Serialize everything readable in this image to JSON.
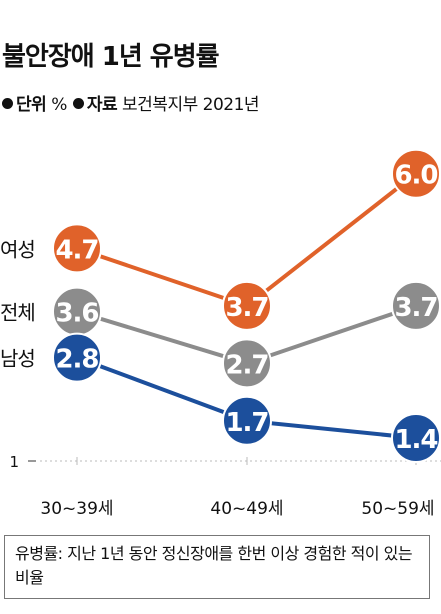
{
  "title": "불안장애 1년 유병률",
  "unit_label": "단위",
  "unit_value": "%",
  "source_label": "자료",
  "source_value": "보건복지부 2021년",
  "note": "유병률: 지난 1년 동안 정신장애를 한번 이상 경험한 적이 있는 비율",
  "colors": {
    "female": "#e0622a",
    "total": "#8c8c8c",
    "male": "#1c4f9c"
  },
  "chart_data": {
    "type": "line",
    "categories": [
      "30~39세",
      "40~49세",
      "50~59세"
    ],
    "series": [
      {
        "name": "여성",
        "values": [
          4.7,
          3.7,
          6.0
        ],
        "labels": [
          "4.7",
          "3.7",
          "6.0"
        ]
      },
      {
        "name": "전체",
        "values": [
          3.6,
          2.7,
          3.7
        ],
        "labels": [
          "3.6",
          "2.7",
          "3.7"
        ]
      },
      {
        "name": "남성",
        "values": [
          2.8,
          1.7,
          1.4
        ],
        "labels": [
          "2.8",
          "1.7",
          "1.4"
        ]
      }
    ],
    "ylim": [
      1,
      6.9
    ],
    "y_ticks": [
      "1"
    ],
    "grid": false
  }
}
